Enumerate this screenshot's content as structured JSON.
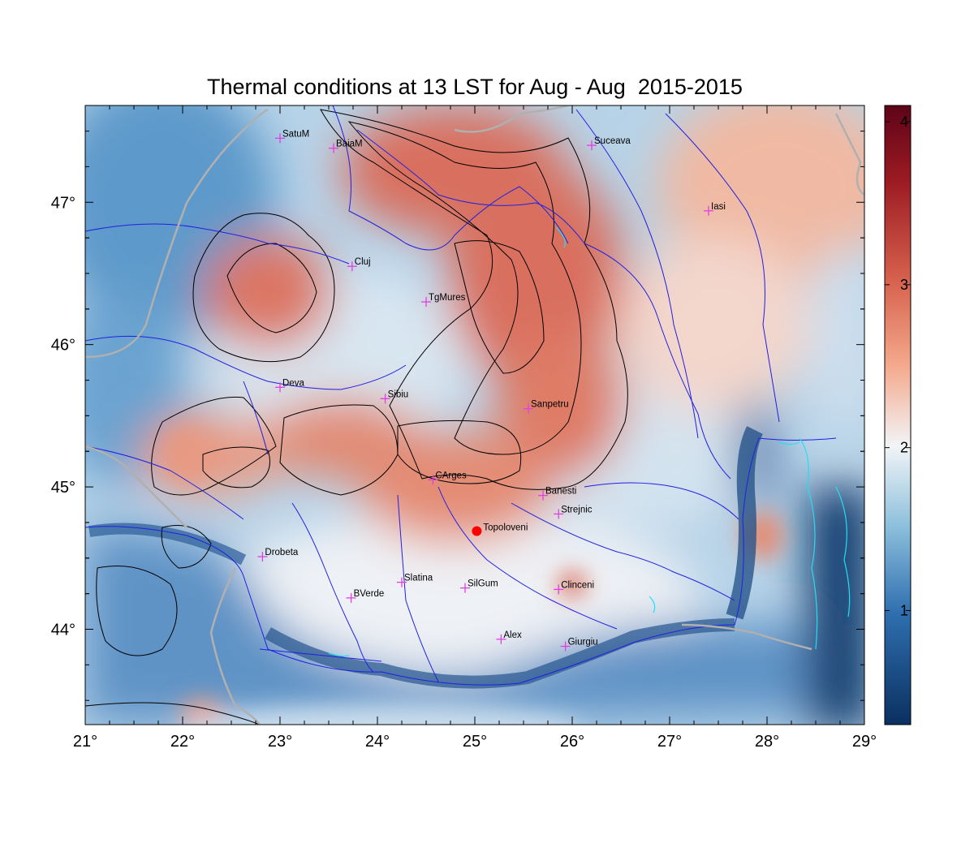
{
  "title": "Thermal conditions at 13 LST for Aug - Aug  2015-2015",
  "map": {
    "lon_range": [
      21,
      29
    ],
    "lat_range": [
      43.33,
      47.68
    ],
    "lon_ticks": [
      "21°",
      "22°",
      "23°",
      "24°",
      "25°",
      "26°",
      "27°",
      "28°",
      "29°"
    ],
    "lon_tick_values": [
      21,
      22,
      23,
      24,
      25,
      26,
      27,
      28,
      29
    ],
    "lat_ticks": [
      "47°",
      "46°",
      "45°",
      "44°"
    ],
    "lat_tick_values": [
      47,
      46,
      45,
      44
    ],
    "cities": [
      {
        "name": "SatuM",
        "lon": 23.0,
        "lat": 47.45
      },
      {
        "name": "BaiaM",
        "lon": 23.55,
        "lat": 47.38
      },
      {
        "name": "Suceava",
        "lon": 26.2,
        "lat": 47.4
      },
      {
        "name": "Iasi",
        "lon": 27.4,
        "lat": 46.94
      },
      {
        "name": "Cluj",
        "lon": 23.74,
        "lat": 46.55
      },
      {
        "name": "TgMures",
        "lon": 24.5,
        "lat": 46.3
      },
      {
        "name": "Deva",
        "lon": 23.0,
        "lat": 45.7
      },
      {
        "name": "Sibiu",
        "lon": 24.08,
        "lat": 45.62
      },
      {
        "name": "Sanpetru",
        "lon": 25.55,
        "lat": 45.55
      },
      {
        "name": "CArges",
        "lon": 24.57,
        "lat": 45.05
      },
      {
        "name": "Banesti",
        "lon": 25.7,
        "lat": 44.94
      },
      {
        "name": "Strejnic",
        "lon": 25.86,
        "lat": 44.81
      },
      {
        "name": "Drobeta",
        "lon": 22.82,
        "lat": 44.51
      },
      {
        "name": "Slatina",
        "lon": 24.25,
        "lat": 44.33
      },
      {
        "name": "SilGum",
        "lon": 24.9,
        "lat": 44.29
      },
      {
        "name": "Clinceni",
        "lon": 25.86,
        "lat": 44.28
      },
      {
        "name": "BVerde",
        "lon": 23.73,
        "lat": 44.22
      },
      {
        "name": "Alex",
        "lon": 25.27,
        "lat": 43.93
      },
      {
        "name": "Giurgiu",
        "lon": 25.93,
        "lat": 43.88
      }
    ],
    "highlight_station": {
      "name": "Topoloveni",
      "lon": 25.02,
      "lat": 44.69,
      "color": "#ff0000"
    },
    "city_marker_color": "#e040e0"
  },
  "colorbar": {
    "min": 0.3,
    "max": 4.1,
    "ticks": [
      1,
      2,
      3,
      4
    ],
    "tick_labels": [
      "1",
      "2",
      "3",
      "4"
    ],
    "colors": [
      "#0a3060",
      "#2f6fb0",
      "#8cbfdc",
      "#f2f4f7",
      "#f4a98c",
      "#d6604d",
      "#9b1a22",
      "#5e0418"
    ]
  },
  "layers": {
    "river_color": "#2020e0",
    "lake_color": "#20e0f0",
    "contour_color": "#000000",
    "border_color": "#b0b0b0"
  }
}
